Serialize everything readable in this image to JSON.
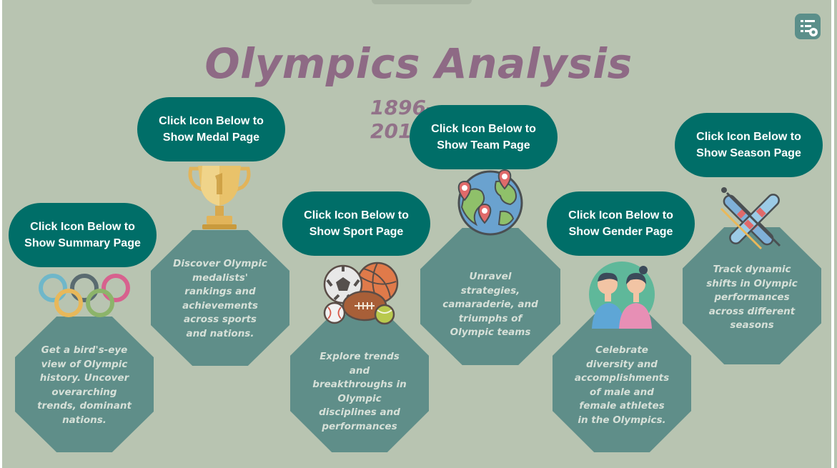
{
  "header": {
    "title": "Olympics Analysis",
    "subtitle": "1896-2016"
  },
  "menu_icon": "list-settings-icon",
  "cards": [
    {
      "key": "summary",
      "button": "Click Icon Below to Show Summary Page",
      "icon": "olympic-rings-icon",
      "description": "Get a bird's-eye view of Olympic history. Uncover overarching trends, dominant nations."
    },
    {
      "key": "medal",
      "button": "Click Icon Below to Show Medal Page",
      "icon": "trophy-icon",
      "description": "Discover Olympic medalists' rankings and achievements across sports and nations."
    },
    {
      "key": "sport",
      "button": "Click Icon Below to Show Sport Page",
      "icon": "sports-balls-icon",
      "description": "Explore trends and breakthroughs in Olympic disciplines and performances"
    },
    {
      "key": "team",
      "button": "Click Icon Below to Show Team Page",
      "icon": "globe-pins-icon",
      "description": "Unravel strategies, camaraderie, and triumphs of Olympic teams"
    },
    {
      "key": "gender",
      "button": "Click Icon Below to Show Gender Page",
      "icon": "male-female-athletes-icon",
      "description": "Celebrate diversity and accomplishments of male and female athletes in the Olympics."
    },
    {
      "key": "season",
      "button": "Click Icon Below to Show Season Page",
      "icon": "skis-icon",
      "description": "Track dynamic shifts in Olympic performances across different seasons"
    }
  ],
  "colors": {
    "background": "#b8c4b1",
    "title": "#8e6a85",
    "button": "#006e68",
    "card": "#5f8e89"
  }
}
